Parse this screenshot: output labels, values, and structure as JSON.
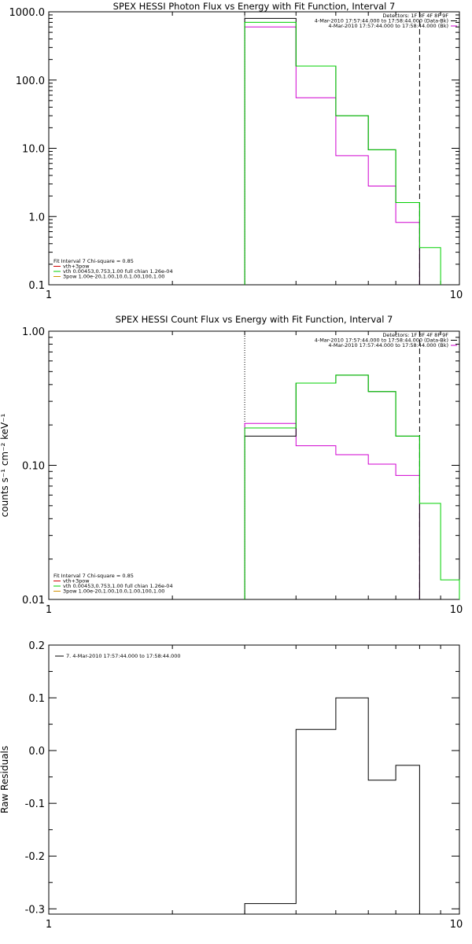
{
  "colors": {
    "black": "#000000",
    "magenta": "#d000d0",
    "green": "#00d000",
    "orange": "#d09000",
    "red": "#d00000"
  },
  "chart_data": [
    {
      "type": "line",
      "title": "SPEX HESSI Photon Flux vs Energy with Fit Function, Interval 7",
      "ylabel": "",
      "xscale": "log",
      "yscale": "log",
      "xlim": [
        1,
        10
      ],
      "ylim": [
        0.1,
        1000
      ],
      "xticks": [
        "1",
        "10"
      ],
      "yticks": [
        {
          "v": 1000,
          "label": "1000.0"
        },
        {
          "v": 100,
          "label": "100.0"
        },
        {
          "v": 10,
          "label": "10.0"
        },
        {
          "v": 1,
          "label": "1.0"
        },
        {
          "v": 0.1,
          "label": "0.1"
        }
      ],
      "legend_tr": [
        "Detectors: 1F 3F 4F 8F 9F",
        "4-Mar-2010 17:57:44.000 to 17:58:44.000 (Data-Bk)",
        "4-Mar-2010 17:57:44.000 to 17:58:44.000 (Bk)"
      ],
      "legend_bl": [
        "Fit Interval 7   Chi-square = 0.85",
        "vth+3pow",
        "vth 0.00453,0.753,1.00  full chian 1.26e-04",
        "3pow 1.00e-20,1.00,10.0,1.00,100,1.00"
      ],
      "edges": [
        3,
        4,
        5,
        6,
        7,
        8,
        9
      ],
      "vlines": [
        {
          "x": 3.0,
          "style": "dotted"
        },
        {
          "x": 8.0,
          "style": "dashed"
        }
      ],
      "series": [
        {
          "name": "Data-Bk",
          "color": "#000000",
          "values": [
            800,
            160,
            30,
            9.5,
            1.6,
            null
          ]
        },
        {
          "name": "Bk",
          "color": "#d000d0",
          "values": [
            600,
            55,
            7.8,
            2.8,
            0.82,
            null
          ]
        },
        {
          "name": "vth",
          "color": "#00d000",
          "values": [
            700,
            160,
            30,
            9.5,
            1.6,
            0.35
          ]
        }
      ]
    },
    {
      "type": "line",
      "title": "SPEX HESSI Count Flux vs Energy with Fit Function, Interval 7",
      "ylabel": "counts s⁻¹ cm⁻² keV⁻¹",
      "xscale": "log",
      "yscale": "log",
      "xlim": [
        1,
        10
      ],
      "ylim": [
        0.01,
        1
      ],
      "xticks": [
        "1",
        "10"
      ],
      "yticks": [
        {
          "v": 1,
          "label": "1.00"
        },
        {
          "v": 0.1,
          "label": "0.10"
        },
        {
          "v": 0.01,
          "label": "0.01"
        }
      ],
      "legend_tr": [
        "Detectors: 1F 3F 4F 8F 9F",
        "4-Mar-2010 17:57:44.000 to 17:58:44.000 (Data-Bk)",
        "4-Mar-2010 17:57:44.000 to 17:58:44.000 (Bk)"
      ],
      "legend_bl": [
        "Fit Interval 7   Chi-square = 0.85",
        "vth+3pow",
        "vth 0.00453,0.753,1.00  full chian 1.26e-04",
        "3pow 1.00e-20,1.00,10.0,1.00,100,1.00"
      ],
      "edges": [
        3,
        4,
        5,
        6,
        7,
        8,
        9,
        10
      ],
      "vlines": [
        {
          "x": 3.0,
          "style": "dotted"
        },
        {
          "x": 8.0,
          "style": "dashed"
        }
      ],
      "series": [
        {
          "name": "Data-Bk",
          "color": "#000000",
          "values": [
            0.165,
            0.41,
            0.47,
            0.355,
            0.165,
            null,
            null
          ]
        },
        {
          "name": "Bk",
          "color": "#d000d0",
          "values": [
            0.205,
            0.14,
            0.12,
            0.102,
            0.084,
            null,
            null
          ]
        },
        {
          "name": "vth",
          "color": "#00d000",
          "values": [
            0.19,
            0.41,
            0.47,
            0.355,
            0.165,
            0.052,
            0.014
          ]
        }
      ]
    },
    {
      "type": "line",
      "title": "",
      "ylabel": "Raw Residuals",
      "xscale": "log",
      "yscale": "linear",
      "xlim": [
        1,
        10
      ],
      "ylim": [
        -0.31,
        0.2
      ],
      "xticks": [
        "1",
        "10"
      ],
      "yticks": [
        {
          "v": 0.2,
          "label": "0.2"
        },
        {
          "v": 0.1,
          "label": "0.1"
        },
        {
          "v": 0.0,
          "label": "0.0"
        },
        {
          "v": -0.1,
          "label": "-0.1"
        },
        {
          "v": -0.2,
          "label": "-0.2"
        },
        {
          "v": -0.3,
          "label": "-0.3"
        }
      ],
      "legend_tl": [
        "7.  4-Mar-2010 17:57:44.000 to 17:58:44.000"
      ],
      "edges": [
        3,
        4,
        5,
        6,
        7,
        8
      ],
      "series": [
        {
          "name": "7",
          "color": "#000000",
          "values": [
            -0.29,
            0.04,
            0.1,
            -0.056,
            -0.028
          ]
        }
      ]
    }
  ]
}
